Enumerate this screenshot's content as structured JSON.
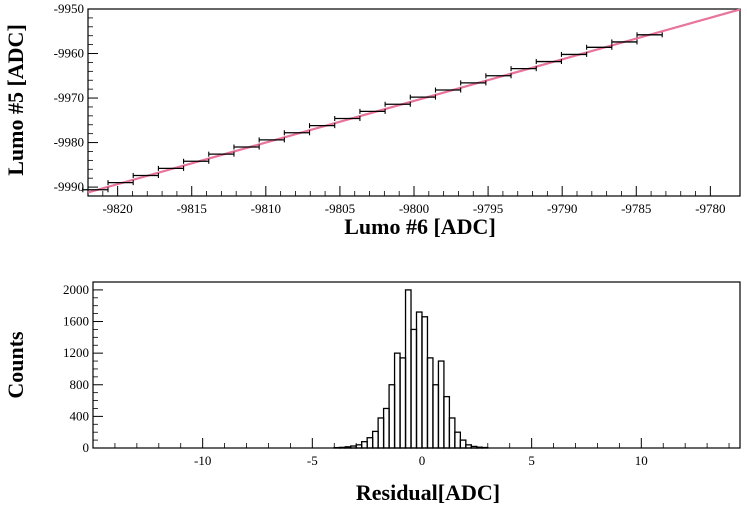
{
  "chart_data": [
    {
      "type": "scatter",
      "title": "",
      "xlabel": "Lumo #6 [ADC]",
      "ylabel": "Lumo #5 [ADC]",
      "xlim": [
        -9822,
        -9778
      ],
      "ylim": [
        -9992,
        -9950
      ],
      "xticks": [
        -9820,
        -9815,
        -9810,
        -9805,
        -9800,
        -9795,
        -9790,
        -9785,
        -9780
      ],
      "yticks": [
        -9990,
        -9980,
        -9970,
        -9960,
        -9950
      ],
      "grid": false,
      "series": [
        {
          "kind": "profile points with horizontal error bars",
          "color": "#000000",
          "x": [
            -9821.5,
            -9819.8,
            -9818.1,
            -9816.4,
            -9814.7,
            -9813.0,
            -9811.3,
            -9809.6,
            -9807.9,
            -9806.2,
            -9804.5,
            -9802.8,
            -9801.1,
            -9799.4,
            -9797.7,
            -9796.0,
            -9794.3,
            -9792.6,
            -9790.9,
            -9789.2,
            -9787.5,
            -9785.8,
            -9784.1
          ],
          "y": [
            -9990.6,
            -9989.0,
            -9987.4,
            -9985.8,
            -9984.2,
            -9982.6,
            -9981.0,
            -9979.4,
            -9977.8,
            -9976.2,
            -9974.6,
            -9973.0,
            -9971.4,
            -9969.8,
            -9968.2,
            -9966.6,
            -9965.0,
            -9963.4,
            -9961.8,
            -9960.2,
            -9958.6,
            -9957.4,
            -9955.8
          ],
          "xerr": 0.85
        },
        {
          "kind": "fit line",
          "color": "#e8749c",
          "x": [
            -9822,
            -9778
          ],
          "y": [
            -9991.2,
            -9950.1
          ]
        }
      ]
    },
    {
      "type": "bar",
      "style": "step histogram",
      "title": "",
      "xlabel": "Residual[ADC]",
      "ylabel": "Counts",
      "xlim": [
        -15,
        14.5
      ],
      "ylim": [
        0,
        2100
      ],
      "xticks": [
        -10,
        -5,
        0,
        5,
        10
      ],
      "yticks": [
        0,
        400,
        800,
        1200,
        1600,
        2000
      ],
      "grid": false,
      "color": "#000000",
      "bin_width": 0.25,
      "bin_start": -4.0,
      "values": [
        5,
        8,
        15,
        25,
        40,
        80,
        130,
        210,
        380,
        500,
        800,
        1200,
        1140,
        2000,
        1500,
        1720,
        1660,
        1140,
        800,
        1100,
        650,
        380,
        200,
        100,
        40,
        20,
        10,
        6
      ]
    }
  ]
}
